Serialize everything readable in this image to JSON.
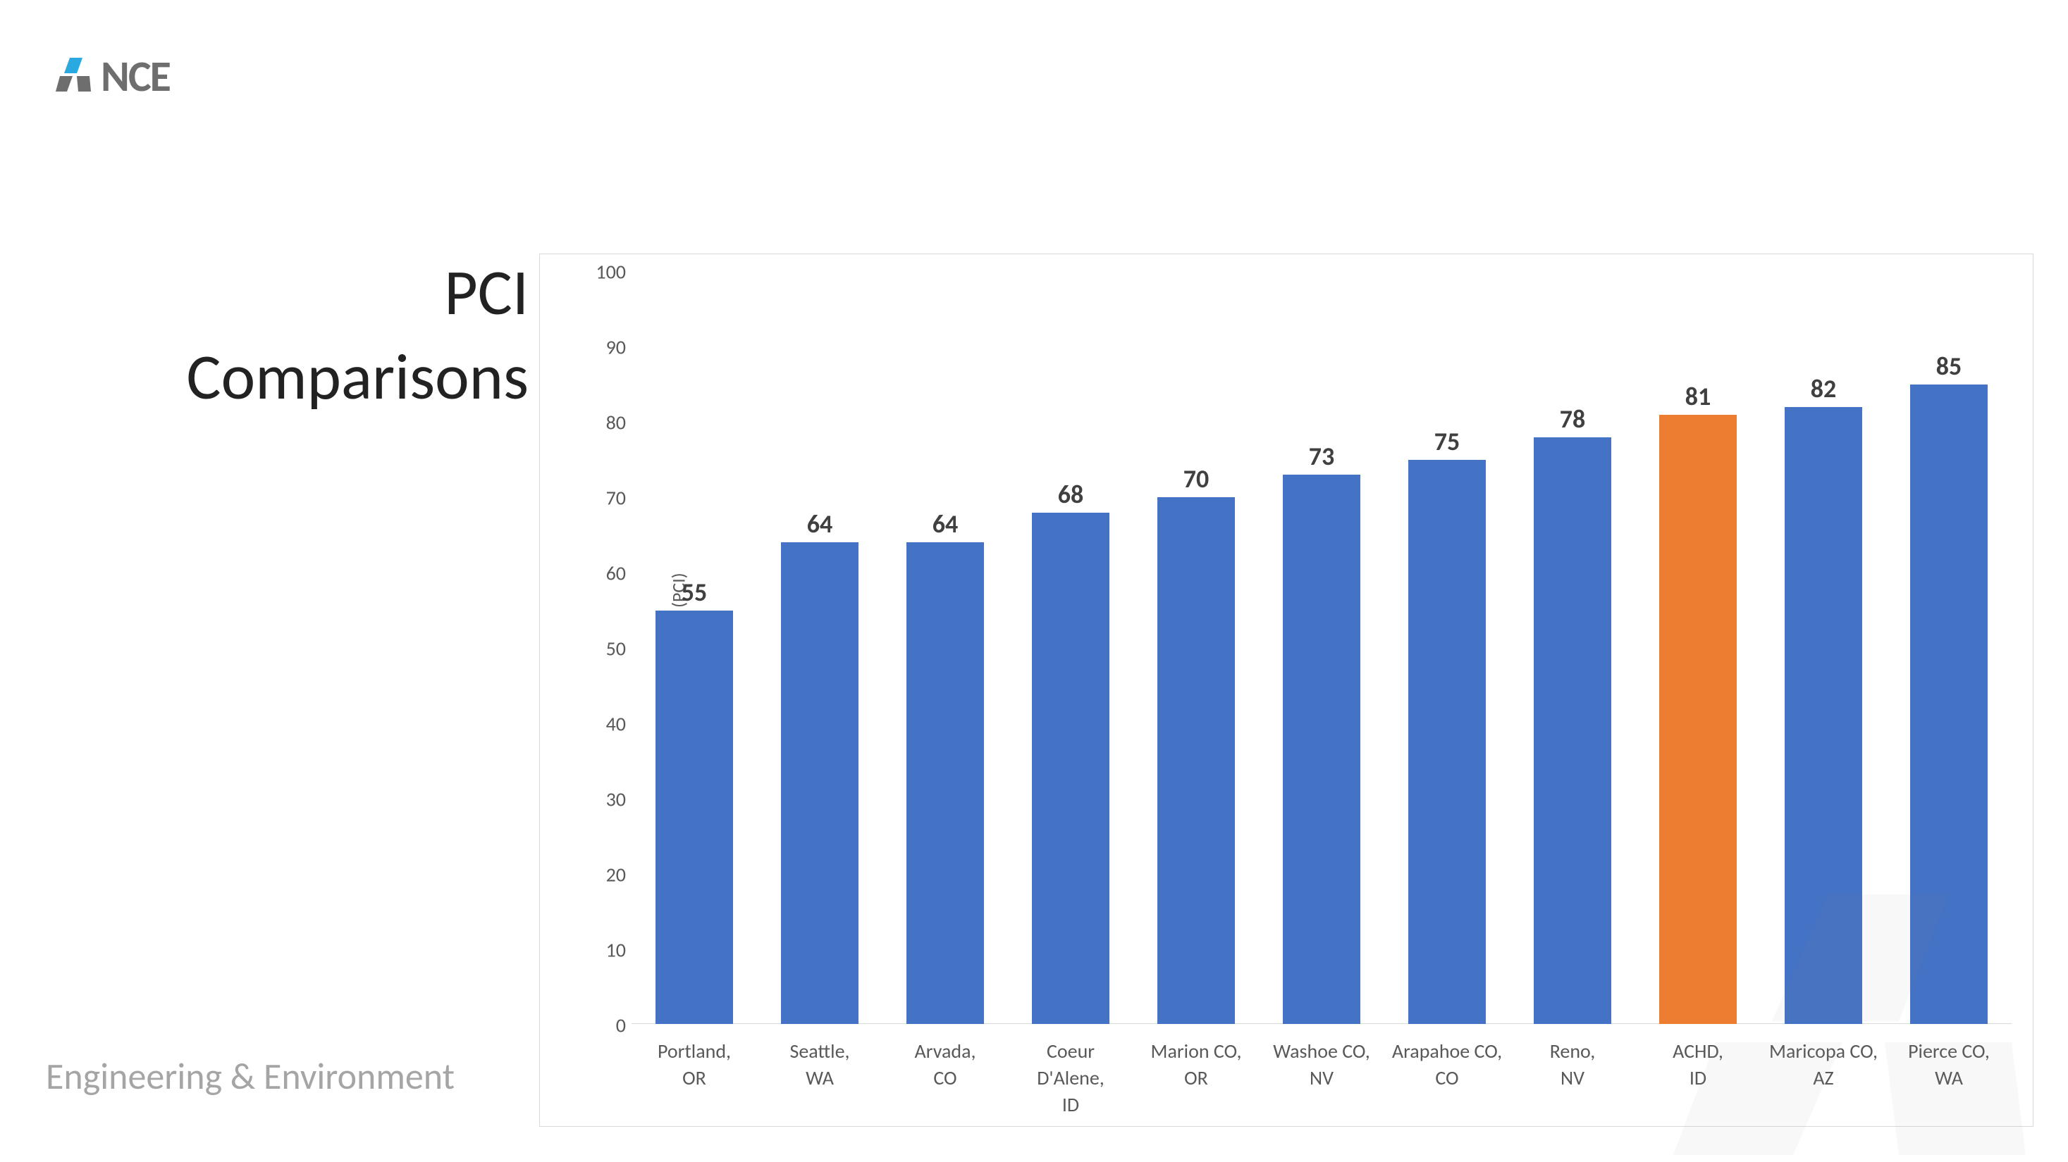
{
  "logo": {
    "text": "NCE",
    "mark_color_a": "#2aa9e0",
    "mark_color_b": "#6e6e6e"
  },
  "title": "PCI Comparisons",
  "footer": "Engineering & Environment",
  "chart": {
    "type": "bar",
    "y_axis_title": "Pavemenr Condition Index (PCI)",
    "ylim": [
      0,
      100
    ],
    "ytick_step": 10,
    "y_ticks": [
      0,
      10,
      20,
      30,
      40,
      50,
      60,
      70,
      80,
      90,
      100
    ],
    "categories": [
      "Portland, OR",
      "Seattle, WA",
      "Arvada, CO",
      "Coeur D'Alene, ID",
      "Marion CO, OR",
      "Washoe CO, NV",
      "Arapahoe CO, CO",
      "Reno, NV",
      "ACHD, ID",
      "Maricopa CO, AZ",
      "Pierce CO, WA"
    ],
    "values": [
      55,
      64,
      64,
      68,
      70,
      73,
      75,
      78,
      81,
      82,
      85
    ],
    "bar_colors": [
      "#4472c4",
      "#4472c4",
      "#4472c4",
      "#4472c4",
      "#4472c4",
      "#4472c4",
      "#4472c4",
      "#4472c4",
      "#ed7d31",
      "#4472c4",
      "#4472c4"
    ],
    "border_color": "#d9d9d9",
    "background_color": "#ffffff",
    "tick_label_color": "#595959",
    "value_label_color": "#404040",
    "value_fontsize": 36,
    "tick_fontsize": 28,
    "axis_title_fontsize": 26,
    "bar_width": 0.62
  }
}
